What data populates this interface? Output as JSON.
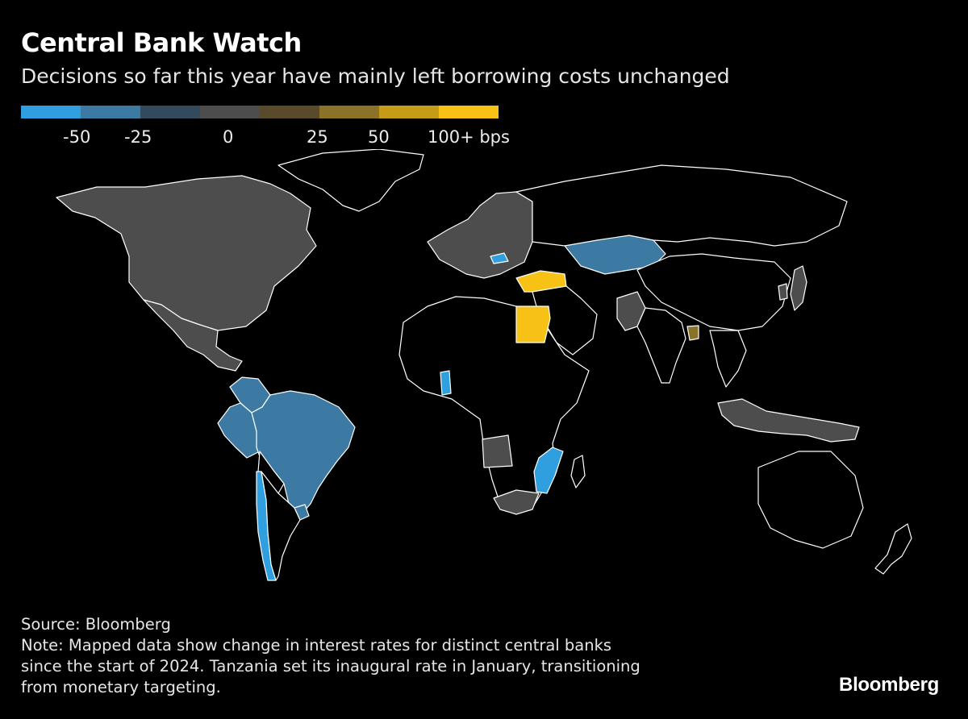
{
  "header": {
    "title": "Central Bank Watch",
    "subtitle": "Decisions so far this year have mainly left borrowing costs unchanged"
  },
  "legend": {
    "swatches": [
      {
        "color": "#2f9fe0"
      },
      {
        "color": "#3d7aa3"
      },
      {
        "color": "#33495c"
      },
      {
        "color": "#4d4d4d"
      },
      {
        "color": "#5a4a2c"
      },
      {
        "color": "#8a7228"
      },
      {
        "color": "#c59b17"
      },
      {
        "color": "#f7c215"
      }
    ],
    "labels": [
      "-50",
      "-25",
      "0",
      "25",
      "50",
      "100+ bps"
    ]
  },
  "map_data": {
    "metric": "change in interest rates (bps) since the start of 2024",
    "colors": {
      "no_data": "#000000",
      "unchanged": "#4d4d4d",
      "cut_25": "#3d7aa3",
      "cut_50": "#2f9fe0",
      "hike_25": "#8a7228",
      "hike_100_plus": "#f7c215"
    },
    "regions": [
      {
        "name": "North America",
        "category": "unchanged"
      },
      {
        "name": "Greenland",
        "category": "no_data"
      },
      {
        "name": "Mexico",
        "category": "unchanged"
      },
      {
        "name": "Colombia",
        "category": "cut_25"
      },
      {
        "name": "Peru",
        "category": "cut_25"
      },
      {
        "name": "Brazil",
        "category": "cut_25"
      },
      {
        "name": "Chile",
        "category": "cut_50"
      },
      {
        "name": "Uruguay",
        "category": "cut_25"
      },
      {
        "name": "Argentina",
        "category": "no_data"
      },
      {
        "name": "Europe",
        "category": "unchanged"
      },
      {
        "name": "Hungary",
        "category": "cut_50"
      },
      {
        "name": "Turkey",
        "category": "hike_100_plus"
      },
      {
        "name": "Egypt",
        "category": "hike_100_plus"
      },
      {
        "name": "Russia",
        "category": "no_data"
      },
      {
        "name": "Kazakhstan",
        "category": "cut_25"
      },
      {
        "name": "Pakistan",
        "category": "unchanged"
      },
      {
        "name": "Bangladesh",
        "category": "hike_25"
      },
      {
        "name": "India",
        "category": "no_data"
      },
      {
        "name": "China",
        "category": "no_data"
      },
      {
        "name": "Japan",
        "category": "unchanged"
      },
      {
        "name": "South Korea",
        "category": "unchanged"
      },
      {
        "name": "Ghana",
        "category": "cut_50"
      },
      {
        "name": "Mozambique",
        "category": "cut_50"
      },
      {
        "name": "Angola",
        "category": "unchanged"
      },
      {
        "name": "South Africa",
        "category": "unchanged"
      },
      {
        "name": "Indonesia",
        "category": "unchanged"
      },
      {
        "name": "Australia",
        "category": "no_data"
      },
      {
        "name": "New Zealand",
        "category": "no_data"
      }
    ]
  },
  "footer": {
    "source": "Source: Bloomberg",
    "note_lines": [
      "Note: Mapped data show change in interest rates for distinct central banks",
      "since the start of 2024. Tanzania set its inaugural rate in January, transitioning",
      "from monetary targeting."
    ]
  },
  "brand": "Bloomberg"
}
